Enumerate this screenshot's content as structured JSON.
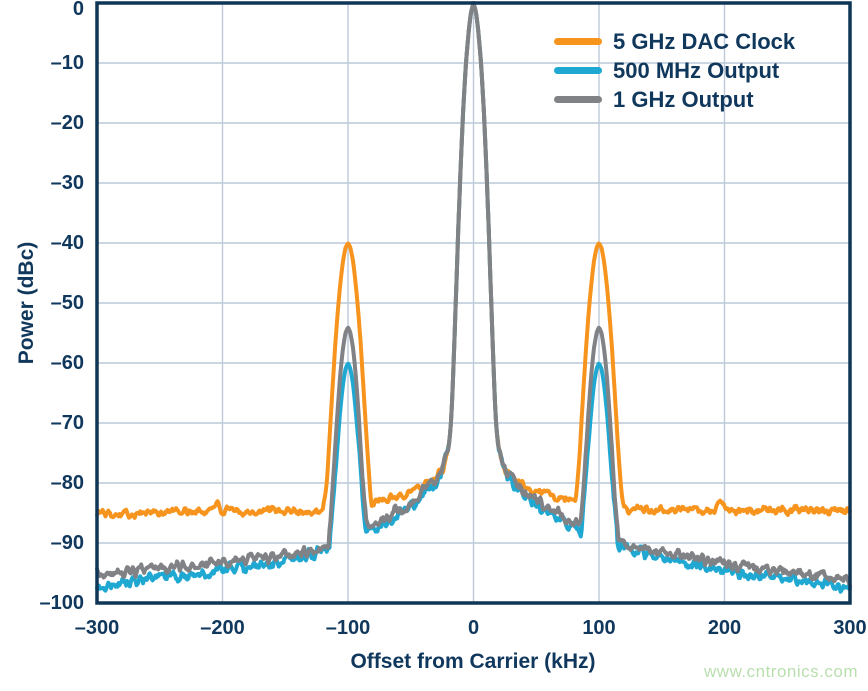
{
  "watermark": {
    "text": "www.cntronics.com",
    "color": "#b9dfae"
  },
  "colors": {
    "text_navy": "#10375c",
    "frame_navy": "#0f3557",
    "gridline": "#bcc9d8",
    "background": "#ffffff"
  },
  "chart_data": {
    "type": "line",
    "title": "",
    "xlabel": "Offset from Carrier (kHz)",
    "ylabel": "Power (dBc)",
    "xlim": [
      -300,
      300
    ],
    "ylim": [
      -100,
      0
    ],
    "x_ticks": [
      -300,
      -200,
      -100,
      0,
      100,
      200,
      300
    ],
    "y_ticks": [
      0,
      -10,
      -20,
      -30,
      -40,
      -50,
      -60,
      -70,
      -80,
      -90,
      -100
    ],
    "grid": true,
    "legend_position": "top-right-inside",
    "carrier_peak": {
      "offset_khz": 0,
      "level_dbc": 0,
      "profile": [
        [
          0,
          0
        ],
        [
          2,
          -1.5
        ],
        [
          4,
          -5
        ],
        [
          6,
          -10
        ],
        [
          8,
          -17
        ],
        [
          10,
          -26
        ],
        [
          12,
          -37
        ],
        [
          14,
          -49
        ],
        [
          16,
          -61
        ],
        [
          17,
          -66
        ],
        [
          18,
          -70
        ],
        [
          19,
          -72.5
        ],
        [
          20,
          -74
        ],
        [
          22,
          -76
        ],
        [
          25,
          -77.8
        ],
        [
          28,
          -79
        ]
      ]
    },
    "series": [
      {
        "name": "5 GHz DAC Clock",
        "color": "#f7941e",
        "stroke_width": 4,
        "seed": 101,
        "noise_amp": 0.7,
        "carrier": true,
        "summary": {
          "noise_floor_dbc": -85,
          "sideband_offsets_khz": [
            -100,
            100
          ],
          "sideband_level_dbc": -40,
          "carrier_level_dbc": 0,
          "small_spur_offsets_khz": [
            -206,
            198
          ],
          "small_spur_level_dbc": -83.2
        },
        "baseline": [
          [
            -300,
            -85
          ],
          [
            -270,
            -85
          ],
          [
            -240,
            -84.8
          ],
          [
            -212,
            -84.8
          ],
          [
            -206,
            -83.3
          ],
          [
            -200,
            -84.8
          ],
          [
            -170,
            -84.7
          ],
          [
            -140,
            -84.7
          ],
          [
            -120,
            -84.8
          ],
          [
            -100,
            -84.2
          ],
          [
            -85,
            -83.5
          ],
          [
            -70,
            -82.7
          ],
          [
            -55,
            -81.7
          ],
          [
            -45,
            -80.9
          ],
          [
            -35,
            -79.5
          ],
          [
            -28,
            -78.6
          ],
          [
            -22,
            -77.4
          ],
          [
            22,
            -77.4
          ],
          [
            28,
            -78.6
          ],
          [
            35,
            -79.5
          ],
          [
            45,
            -80.8
          ],
          [
            55,
            -81.5
          ],
          [
            70,
            -82.4
          ],
          [
            85,
            -83.2
          ],
          [
            100,
            -83.8
          ],
          [
            120,
            -84.4
          ],
          [
            150,
            -84.5
          ],
          [
            192,
            -84.6
          ],
          [
            198,
            -83.1
          ],
          [
            204,
            -84.6
          ],
          [
            240,
            -84.6
          ],
          [
            270,
            -84.6
          ],
          [
            300,
            -84.7
          ]
        ],
        "peaks": [
          {
            "center": -100,
            "profile": [
              [
                0,
                -40
              ],
              [
                2,
                -40.8
              ],
              [
                4,
                -43
              ],
              [
                6,
                -46.5
              ],
              [
                8,
                -51
              ],
              [
                10,
                -56.5
              ],
              [
                12,
                -63
              ],
              [
                14,
                -70
              ],
              [
                16,
                -77
              ],
              [
                18,
                -82
              ],
              [
                20,
                -84.8
              ]
            ]
          },
          {
            "center": 100,
            "profile": [
              [
                0,
                -40
              ],
              [
                2,
                -40.8
              ],
              [
                4,
                -43
              ],
              [
                6,
                -46.5
              ],
              [
                8,
                -51
              ],
              [
                10,
                -56.5
              ],
              [
                12,
                -63
              ],
              [
                14,
                -70
              ],
              [
                16,
                -77
              ],
              [
                18,
                -82
              ],
              [
                20,
                -84.8
              ]
            ]
          }
        ]
      },
      {
        "name": "500 MHz Output",
        "color": "#1fa8d2",
        "stroke_width": 4,
        "seed": 202,
        "noise_amp": 0.9,
        "carrier": true,
        "summary": {
          "noise_floor_edge_dbc": -97.4,
          "sideband_offsets_khz": [
            -100,
            100
          ],
          "sideband_level_dbc": -60,
          "carrier_level_dbc": 0
        },
        "baseline": [
          [
            -300,
            -97.3
          ],
          [
            -250,
            -95.9
          ],
          [
            -200,
            -94.6
          ],
          [
            -150,
            -93.2
          ],
          [
            -130,
            -92
          ],
          [
            -115,
            -90.8
          ],
          [
            -95,
            -90.4
          ],
          [
            -82,
            -87.6
          ],
          [
            -75,
            -87.1
          ],
          [
            -65,
            -85.9
          ],
          [
            -55,
            -84.6
          ],
          [
            -45,
            -83.1
          ],
          [
            -38,
            -81.7
          ],
          [
            -30,
            -79.8
          ],
          [
            -25,
            -78.4
          ],
          [
            25,
            -78.4
          ],
          [
            30,
            -79.8
          ],
          [
            38,
            -81.7
          ],
          [
            45,
            -83
          ],
          [
            55,
            -84.4
          ],
          [
            65,
            -85.6
          ],
          [
            75,
            -86.8
          ],
          [
            82,
            -87.3
          ],
          [
            95,
            -89.9
          ],
          [
            115,
            -90.2
          ],
          [
            130,
            -91.2
          ],
          [
            150,
            -92.3
          ],
          [
            200,
            -94.6
          ],
          [
            250,
            -96
          ],
          [
            300,
            -97.4
          ]
        ],
        "peaks": [
          {
            "center": -100,
            "profile": [
              [
                0,
                -60
              ],
              [
                2,
                -61
              ],
              [
                4,
                -63.5
              ],
              [
                6,
                -67.5
              ],
              [
                8,
                -72.5
              ],
              [
                10,
                -78
              ],
              [
                12,
                -83.5
              ],
              [
                14,
                -88
              ]
            ]
          },
          {
            "center": 100,
            "profile": [
              [
                0,
                -60
              ],
              [
                2,
                -61
              ],
              [
                4,
                -63.5
              ],
              [
                6,
                -67.5
              ],
              [
                8,
                -72.5
              ],
              [
                10,
                -78
              ],
              [
                12,
                -83.5
              ],
              [
                14,
                -88
              ]
            ]
          }
        ]
      },
      {
        "name": "1 GHz Output",
        "color": "#808285",
        "stroke_width": 4,
        "seed": 303,
        "noise_amp": 0.85,
        "carrier": true,
        "summary": {
          "noise_floor_edge_dbc": -95.5,
          "sideband_offsets_khz": [
            -100,
            100
          ],
          "sideband_level_dbc": -54,
          "carrier_level_dbc": 0
        },
        "baseline": [
          [
            -300,
            -95.3
          ],
          [
            -250,
            -94.3
          ],
          [
            -200,
            -93.3
          ],
          [
            -150,
            -92.2
          ],
          [
            -130,
            -91.3
          ],
          [
            -115,
            -90.4
          ],
          [
            -95,
            -90
          ],
          [
            -82,
            -86.7
          ],
          [
            -75,
            -86.3
          ],
          [
            -65,
            -85.1
          ],
          [
            -55,
            -83.9
          ],
          [
            -45,
            -82.4
          ],
          [
            -38,
            -81.1
          ],
          [
            -30,
            -79.4
          ],
          [
            -25,
            -78.2
          ],
          [
            25,
            -78.2
          ],
          [
            30,
            -79.4
          ],
          [
            38,
            -81.1
          ],
          [
            45,
            -82.2
          ],
          [
            55,
            -83.6
          ],
          [
            65,
            -84.8
          ],
          [
            75,
            -86
          ],
          [
            82,
            -86.5
          ],
          [
            95,
            -89.3
          ],
          [
            115,
            -89.8
          ],
          [
            130,
            -90.6
          ],
          [
            150,
            -91.5
          ],
          [
            200,
            -93.4
          ],
          [
            250,
            -94.8
          ],
          [
            300,
            -96.1
          ]
        ],
        "peaks": [
          {
            "center": -100,
            "profile": [
              [
                0,
                -54
              ],
              [
                2,
                -55
              ],
              [
                4,
                -57.5
              ],
              [
                6,
                -61.5
              ],
              [
                8,
                -67
              ],
              [
                10,
                -73.5
              ],
              [
                12,
                -80
              ],
              [
                14,
                -85.5
              ],
              [
                15,
                -88
              ]
            ]
          },
          {
            "center": 100,
            "profile": [
              [
                0,
                -54
              ],
              [
                2,
                -55
              ],
              [
                4,
                -57.5
              ],
              [
                6,
                -61.5
              ],
              [
                8,
                -67
              ],
              [
                10,
                -73.5
              ],
              [
                12,
                -80
              ],
              [
                14,
                -85.5
              ],
              [
                15,
                -88
              ]
            ]
          }
        ]
      }
    ]
  }
}
